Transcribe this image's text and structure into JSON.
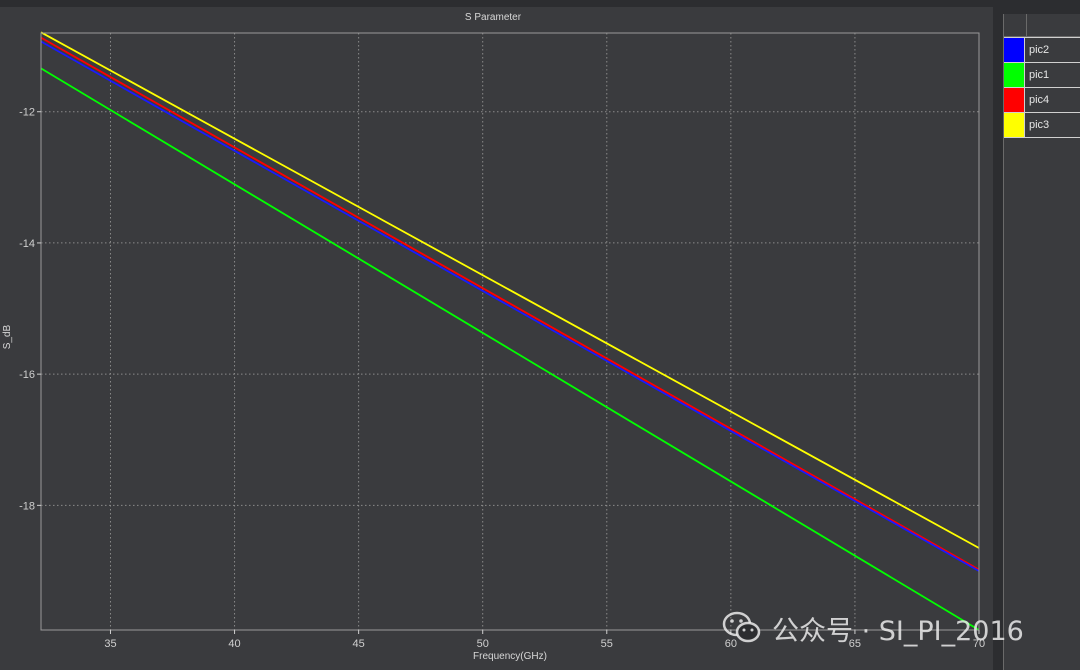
{
  "chart_data": {
    "type": "line",
    "title": "S Parameter",
    "xlabel": "Frequency(GHz)",
    "ylabel": "S_dB",
    "xlim": [
      32.2,
      70
    ],
    "ylim": [
      -19.9,
      -10.8
    ],
    "xticks": [
      35,
      40,
      45,
      50,
      55,
      60,
      65,
      70
    ],
    "yticks": [
      -12,
      -14,
      -16,
      -18
    ],
    "grid": true,
    "legend_position": "right panel",
    "series": [
      {
        "name": "pic2",
        "color": "#1a1aff",
        "x": [
          32.2,
          70
        ],
        "y": [
          -10.93,
          -19.0
        ]
      },
      {
        "name": "pic1",
        "color": "#00ff00",
        "x": [
          32.2,
          70
        ],
        "y": [
          -11.34,
          -19.9
        ]
      },
      {
        "name": "pic4",
        "color": "#ff0000",
        "x": [
          32.2,
          70
        ],
        "y": [
          -10.87,
          -18.98
        ]
      },
      {
        "name": "pic3",
        "color": "#ffff00",
        "x": [
          32.2,
          70
        ],
        "y": [
          -10.79,
          -18.65
        ]
      }
    ]
  },
  "legend": {
    "items": [
      {
        "label": "pic2",
        "color": "#0000ff"
      },
      {
        "label": "pic1",
        "color": "#00ff00"
      },
      {
        "label": "pic4",
        "color": "#ff0000"
      },
      {
        "label": "pic3",
        "color": "#ffff00"
      }
    ]
  },
  "watermark": {
    "text": "公众号 · SI_PI_2016",
    "icon": "wechat-icon"
  }
}
